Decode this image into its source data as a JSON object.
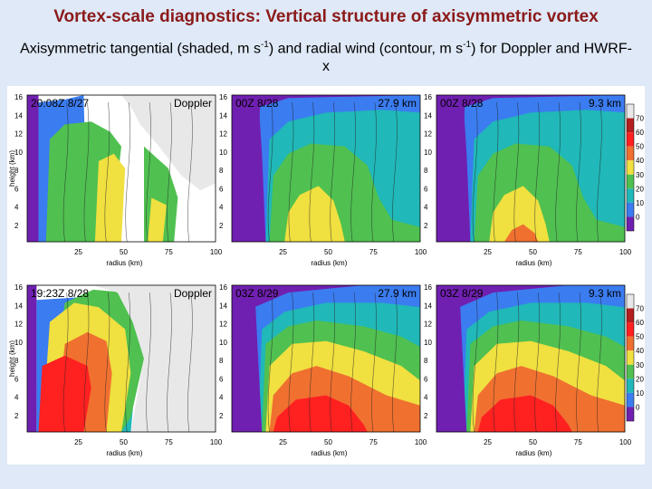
{
  "slide": {
    "title": "Vortex-scale diagnostics: Vertical structure of axisymmetric vortex",
    "subtitle_main": "Axisymmetric tangential (shaded, m s",
    "subtitle_sup1": "-1",
    "subtitle_mid": ") and radial wind (contour, m s",
    "subtitle_sup2": "-1",
    "subtitle_end": ") for Doppler and HWRF-x"
  },
  "axes": {
    "y_label": "height (km)",
    "x_label": "radius (km)",
    "y_ticks": [
      "16",
      "14",
      "12",
      "10",
      "8",
      "6",
      "4",
      "2"
    ],
    "x_ticks": [
      "25",
      "50",
      "75",
      "100"
    ]
  },
  "panels": [
    {
      "time": "20:08Z 8/27",
      "source": "Doppler"
    },
    {
      "time": "00Z 8/28",
      "source": "27.9 km"
    },
    {
      "time": "00Z 8/28",
      "source": "9.3 km"
    },
    {
      "time": "19:23Z 8/28",
      "source": "Doppler"
    },
    {
      "time": "03Z 8/29",
      "source": "27.9 km"
    },
    {
      "time": "03Z 8/29",
      "source": "9.3 km"
    }
  ],
  "colorbar": {
    "labels": [
      "70",
      "60",
      "50",
      "40",
      "30",
      "20",
      "10",
      "0"
    ],
    "colors": [
      "#e8e8e8",
      "#b41e1e",
      "#ff2020",
      "#f07030",
      "#f0e040",
      "#50c050",
      "#20b8b8",
      "#3b7cf0",
      "#7020b0"
    ]
  }
}
